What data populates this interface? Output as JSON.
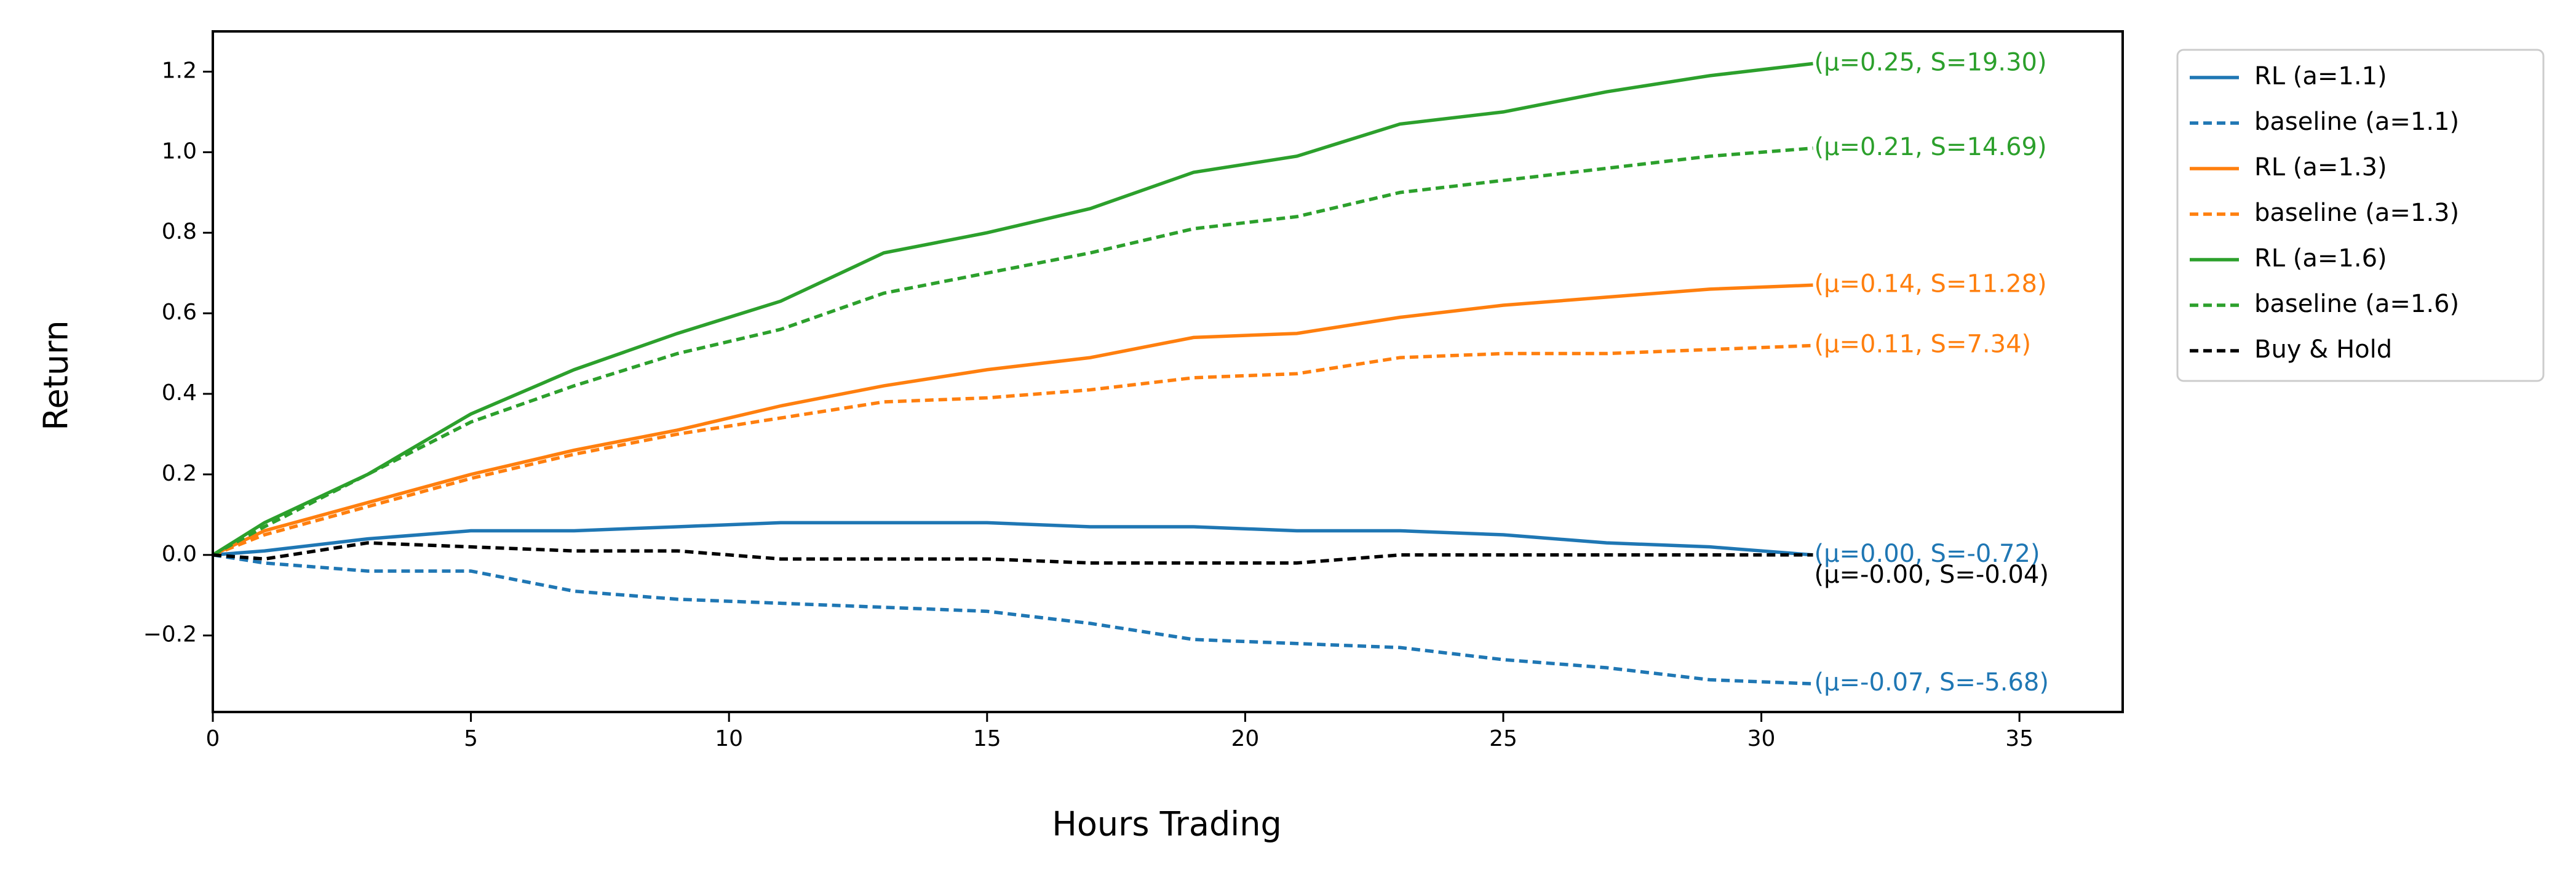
{
  "chart_data": {
    "type": "line",
    "xlabel": "Hours Trading",
    "ylabel": "Return",
    "x": [
      0,
      1,
      3,
      5,
      7,
      9,
      11,
      13,
      15,
      17,
      19,
      21,
      23,
      25,
      27,
      29,
      31
    ],
    "series": [
      {
        "name": "RL (a=1.1)",
        "color": "#1f77b4",
        "dash": false,
        "annotation": "(μ=0.00, S=-0.72)",
        "values": [
          0,
          0.01,
          0.04,
          0.06,
          0.06,
          0.07,
          0.08,
          0.08,
          0.08,
          0.07,
          0.07,
          0.06,
          0.06,
          0.05,
          0.03,
          0.02,
          0.0
        ]
      },
      {
        "name": "baseline (a=1.1)",
        "color": "#1f77b4",
        "dash": true,
        "annotation": "(μ=-0.07, S=-5.68)",
        "values": [
          0,
          -0.02,
          -0.04,
          -0.04,
          -0.09,
          -0.11,
          -0.12,
          -0.13,
          -0.14,
          -0.17,
          -0.21,
          -0.22,
          -0.23,
          -0.26,
          -0.28,
          -0.31,
          -0.32
        ]
      },
      {
        "name": "RL (a=1.3)",
        "color": "#ff7f0e",
        "dash": false,
        "annotation": "(μ=0.14, S=11.28)",
        "values": [
          0,
          0.06,
          0.13,
          0.2,
          0.26,
          0.31,
          0.37,
          0.42,
          0.46,
          0.49,
          0.54,
          0.55,
          0.59,
          0.62,
          0.64,
          0.66,
          0.67
        ]
      },
      {
        "name": "baseline (a=1.3)",
        "color": "#ff7f0e",
        "dash": true,
        "annotation": "(μ=0.11, S=7.34)",
        "values": [
          0,
          0.05,
          0.12,
          0.19,
          0.25,
          0.3,
          0.34,
          0.38,
          0.39,
          0.41,
          0.44,
          0.45,
          0.49,
          0.5,
          0.5,
          0.51,
          0.52
        ]
      },
      {
        "name": "RL (a=1.6)",
        "color": "#2ca02c",
        "dash": false,
        "annotation": "(μ=0.25, S=19.30)",
        "values": [
          0,
          0.08,
          0.2,
          0.35,
          0.46,
          0.55,
          0.63,
          0.75,
          0.8,
          0.86,
          0.95,
          0.99,
          1.07,
          1.1,
          1.15,
          1.19,
          1.22
        ]
      },
      {
        "name": "baseline (a=1.6)",
        "color": "#2ca02c",
        "dash": true,
        "annotation": "(μ=0.21, S=14.69)",
        "values": [
          0,
          0.07,
          0.2,
          0.33,
          0.42,
          0.5,
          0.56,
          0.65,
          0.7,
          0.75,
          0.81,
          0.84,
          0.9,
          0.93,
          0.96,
          0.99,
          1.01
        ]
      },
      {
        "name": "Buy & Hold",
        "color": "#000000",
        "dash": true,
        "annotation": "(μ=-0.00, S=-0.04)",
        "values": [
          0,
          -0.01,
          0.03,
          0.02,
          0.01,
          0.01,
          -0.01,
          -0.01,
          -0.01,
          -0.02,
          -0.02,
          -0.02,
          0.0,
          0.0,
          0.0,
          0.0,
          0.0
        ]
      }
    ],
    "xlim": [
      0,
      37
    ],
    "ylim": [
      -0.39,
      1.3
    ],
    "xticks": [
      0,
      5,
      10,
      15,
      20,
      25,
      30,
      35
    ],
    "yticks": [
      {
        "value": -0.2,
        "label": "−0.2"
      },
      {
        "value": 0,
        "label": "0.0"
      },
      {
        "value": 0.2,
        "label": "0.2"
      },
      {
        "value": 0.4,
        "label": "0.4"
      },
      {
        "value": 0.6,
        "label": "0.6"
      },
      {
        "value": 0.8,
        "label": "0.8"
      },
      {
        "value": 1.0,
        "label": "1.0"
      },
      {
        "value": 1.2,
        "label": "1.2"
      }
    ],
    "legend": "outside-upper-right",
    "grid": false
  }
}
